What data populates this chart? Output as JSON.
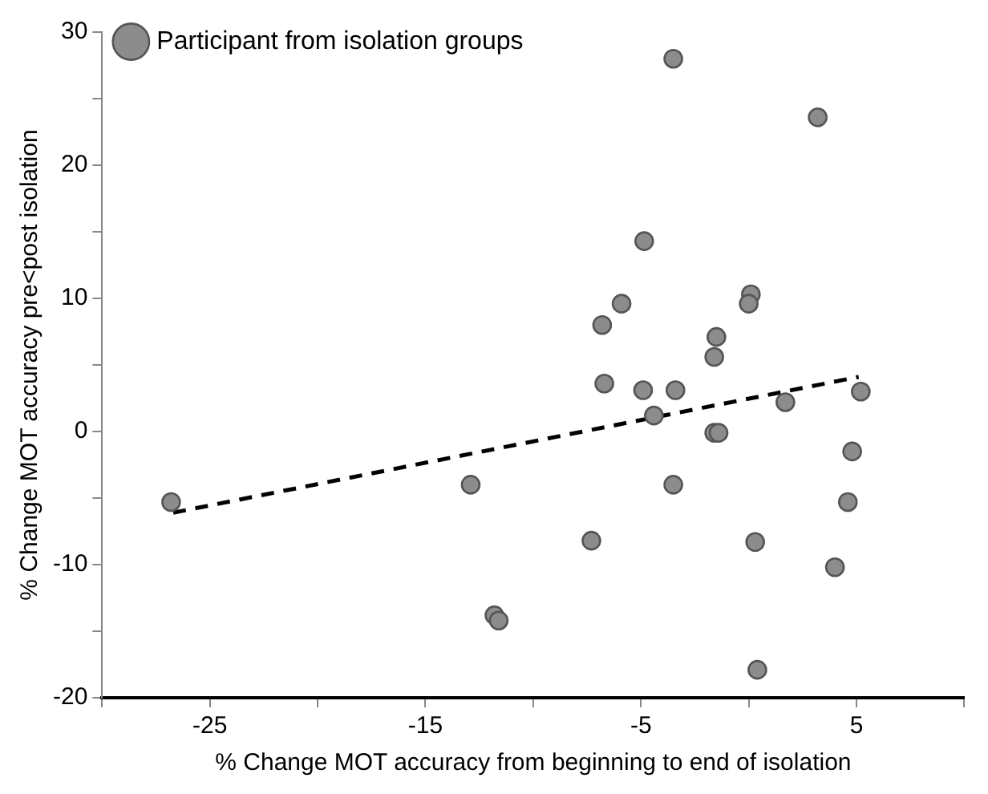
{
  "chart_data": {
    "type": "scatter",
    "xlabel": "% Change MOT accuracy from beginning to end of isolation",
    "ylabel": "% Change MOT accuracy pre<post isolation",
    "xlim": [
      -30,
      10
    ],
    "xticks": [
      {
        "value": -30,
        "label": null
      },
      -25,
      {
        "value": -20,
        "label": null
      },
      -15,
      {
        "value": -10,
        "label": null
      },
      -5,
      {
        "value": 0,
        "label": null
      },
      5,
      {
        "value": 10,
        "label": null
      }
    ],
    "ylim": [
      -20,
      30
    ],
    "yticks": [
      -20,
      {
        "value": -15,
        "label": null
      },
      -10,
      {
        "value": -5,
        "label": null
      },
      0,
      {
        "value": 5,
        "label": null
      },
      10,
      {
        "value": 15,
        "label": null
      },
      20,
      {
        "value": 25,
        "label": null
      },
      30
    ],
    "grid": false,
    "legend": "top left",
    "marker": "circle",
    "series": [
      {
        "name": "Participant from isolation groups",
        "type": "scatter",
        "color": "#8c8c8c",
        "x": [
          -3.5,
          3.2,
          -4.85,
          -5.9,
          -6.8,
          0.1,
          0,
          -1.5,
          -1.6,
          -6.7,
          -4.9,
          -3.4,
          -4.4,
          1.7,
          5.2,
          -1.6,
          -1.4,
          4.8,
          -3.5,
          4.6,
          -7.3,
          0.3,
          4.0,
          0.4,
          -26.8,
          -12.9,
          -11.8,
          -11.6
        ],
        "values": [
          28.0,
          23.6,
          14.3,
          9.6,
          8.0,
          10.3,
          9.6,
          7.1,
          5.6,
          3.6,
          3.1,
          3.1,
          1.2,
          2.2,
          3.0,
          -0.1,
          -0.1,
          -1.5,
          -4.0,
          -5.3,
          -8.2,
          -8.3,
          -10.2,
          -17.9,
          -5.3,
          -4.0,
          -13.8,
          -14.2
        ]
      },
      {
        "type": "line",
        "color": "#000000",
        "line_style": "dashed",
        "marker": "none",
        "x": [
          -26.7,
          5.1
        ],
        "values": [
          -6.1,
          4.1
        ]
      }
    ]
  }
}
